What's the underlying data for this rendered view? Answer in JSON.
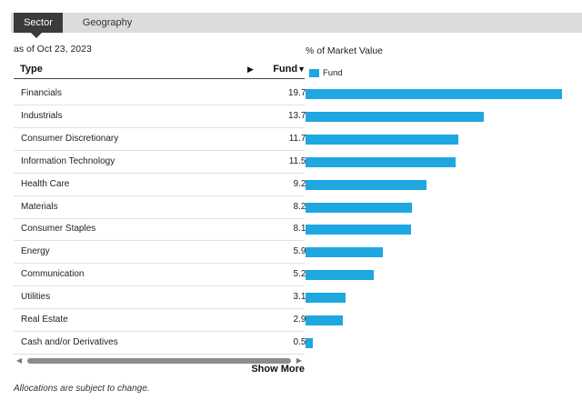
{
  "tabs": [
    {
      "label": "Sector",
      "active": true
    },
    {
      "label": "Geography",
      "active": false
    }
  ],
  "as_of": "as of Oct 23, 2023",
  "chart_axis_label": "% of Market Value",
  "table": {
    "header_type": "Type",
    "header_fund": "Fund",
    "sort_arrow": "▼",
    "expand_arrow": "▶"
  },
  "legend": {
    "label": "Fund",
    "color": "#1ea7e1"
  },
  "rows": [
    {
      "type": "Financials",
      "value": "19.74"
    },
    {
      "type": "Industrials",
      "value": "13.70"
    },
    {
      "type": "Consumer Discretionary",
      "value": "11.73"
    },
    {
      "type": "Information Technology",
      "value": "11.52"
    },
    {
      "type": "Health Care",
      "value": "9.28"
    },
    {
      "type": "Materials",
      "value": "8.20"
    },
    {
      "type": "Consumer Staples",
      "value": "8.13"
    },
    {
      "type": "Energy",
      "value": "5.92"
    },
    {
      "type": "Communication",
      "value": "5.22"
    },
    {
      "type": "Utilities",
      "value": "3.10"
    },
    {
      "type": "Real Estate",
      "value": "2.90"
    },
    {
      "type": "Cash and/or Derivatives",
      "value": "0.54"
    }
  ],
  "show_more": "Show More",
  "footnote": "Allocations are subject to change.",
  "chart_data": {
    "type": "bar",
    "categories": [
      "Financials",
      "Industrials",
      "Consumer Discretionary",
      "Information Technology",
      "Health Care",
      "Materials",
      "Consumer Staples",
      "Energy",
      "Communication",
      "Utilities",
      "Real Estate",
      "Cash and/or Derivatives"
    ],
    "series": [
      {
        "name": "Fund",
        "values": [
          19.74,
          13.7,
          11.73,
          11.52,
          9.28,
          8.2,
          8.13,
          5.92,
          5.22,
          3.1,
          2.9,
          0.54
        ]
      }
    ],
    "title": "% of Market Value",
    "orientation": "horizontal",
    "xlim": [
      0,
      20
    ],
    "grid": false,
    "legend_position": "top-left"
  }
}
